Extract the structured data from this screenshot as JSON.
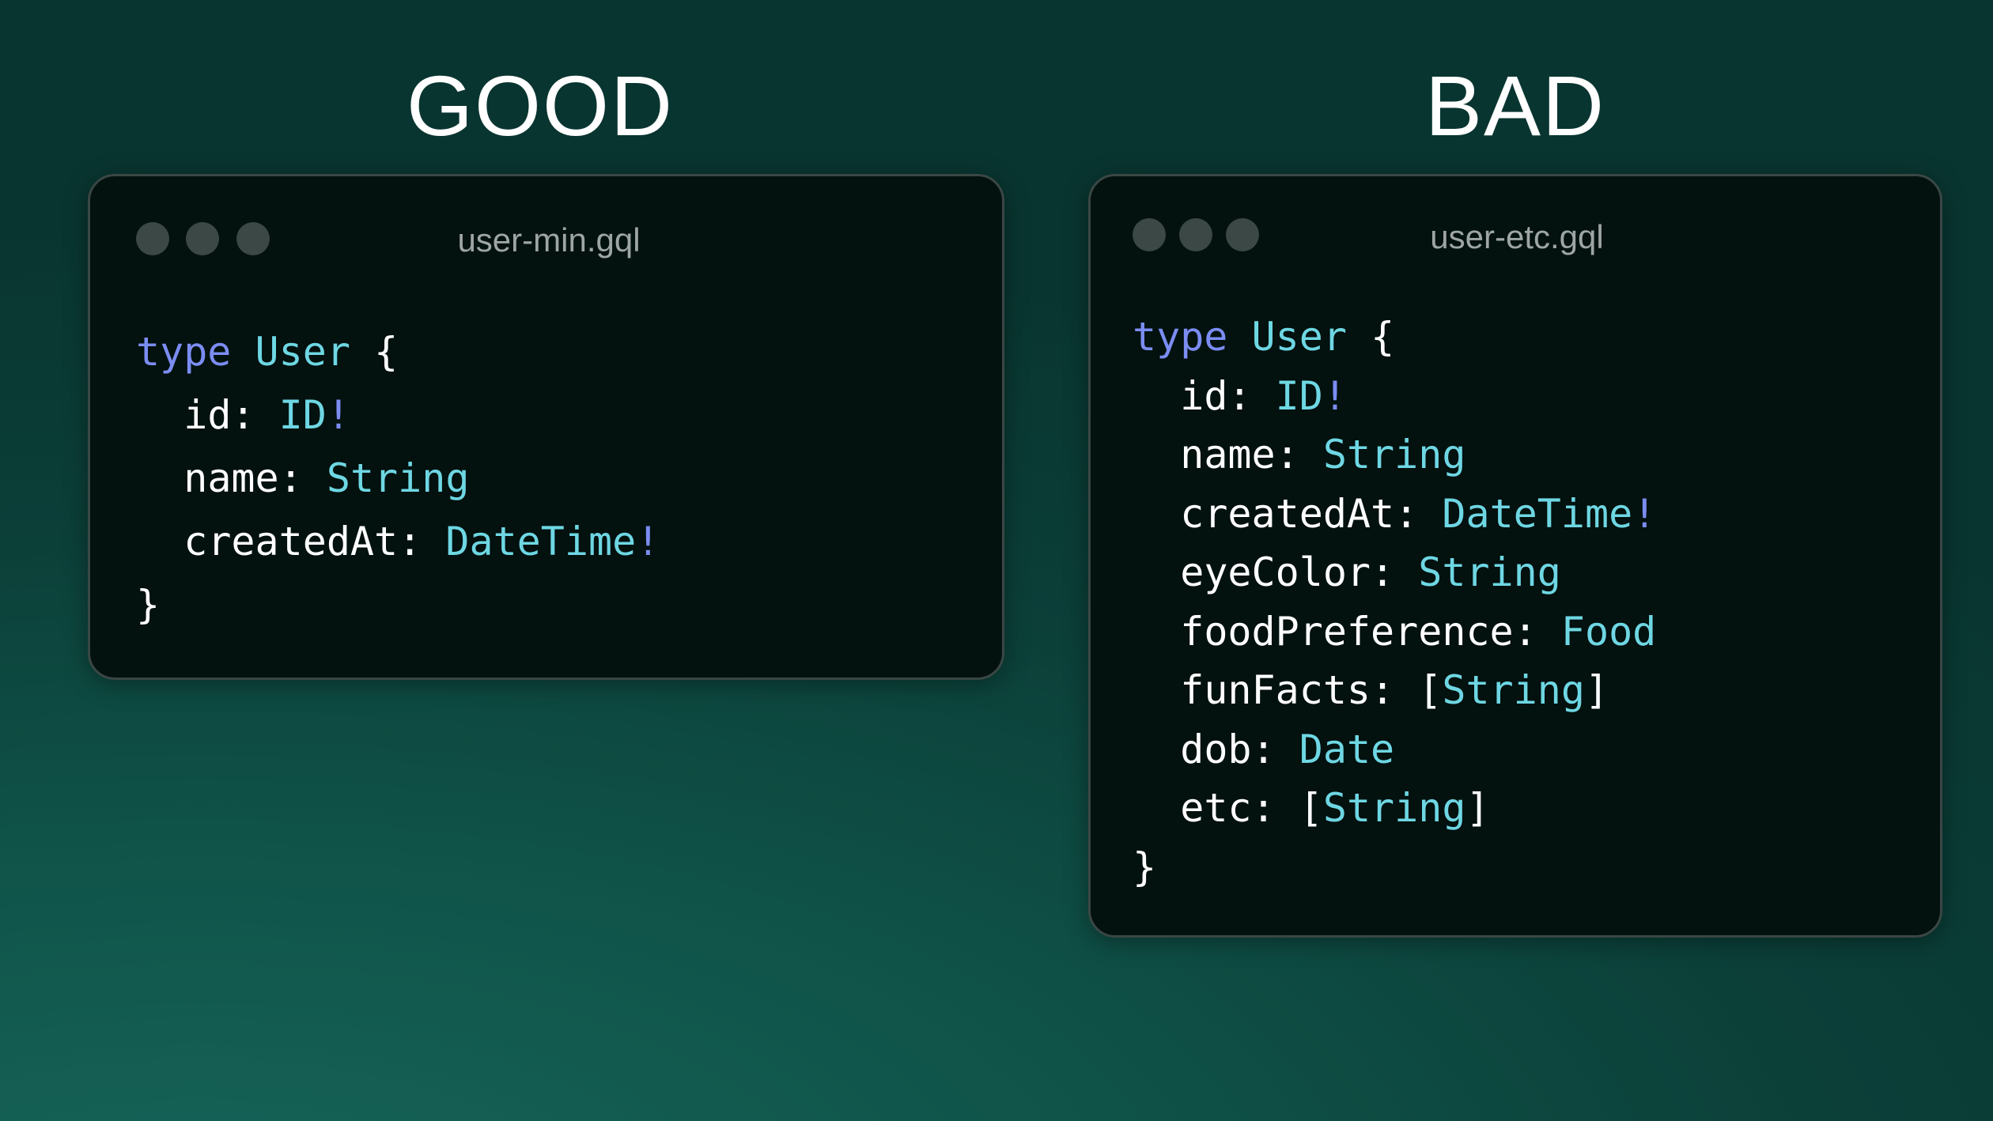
{
  "good": {
    "heading": "GOOD",
    "filename": "user-min.gql",
    "keyword": "type",
    "type_name": "User",
    "open_brace": "{",
    "close_brace": "}",
    "fields": [
      {
        "name": "id: ",
        "type": "ID",
        "suffix": "!"
      },
      {
        "name": "name: ",
        "type": "String",
        "suffix": ""
      },
      {
        "name": "createdAt: ",
        "type": "DateTime",
        "suffix": "!"
      }
    ]
  },
  "bad": {
    "heading": "BAD",
    "filename": "user-etc.gql",
    "keyword": "type",
    "type_name": "User",
    "open_brace": "{",
    "close_brace": "}",
    "fields": [
      {
        "name": "id: ",
        "pre": "",
        "type": "ID",
        "post": "",
        "suffix": "!"
      },
      {
        "name": "name: ",
        "pre": "",
        "type": "String",
        "post": "",
        "suffix": ""
      },
      {
        "name": "createdAt: ",
        "pre": "",
        "type": "DateTime",
        "post": "",
        "suffix": "!"
      },
      {
        "name": "eyeColor: ",
        "pre": "",
        "type": "String",
        "post": "",
        "suffix": ""
      },
      {
        "name": "foodPreference: ",
        "pre": "",
        "type": "Food",
        "post": "",
        "suffix": ""
      },
      {
        "name": "funFacts: ",
        "pre": "[",
        "type": "String",
        "post": "]",
        "suffix": ""
      },
      {
        "name": "dob: ",
        "pre": "",
        "type": "Date",
        "post": "",
        "suffix": ""
      },
      {
        "name": "etc: ",
        "pre": "[",
        "type": "String",
        "post": "]",
        "suffix": ""
      }
    ]
  },
  "colors": {
    "keyword": "#7b8df2",
    "type": "#6ed7e3",
    "text": "#ffffff",
    "window_bg": "#03110f"
  }
}
